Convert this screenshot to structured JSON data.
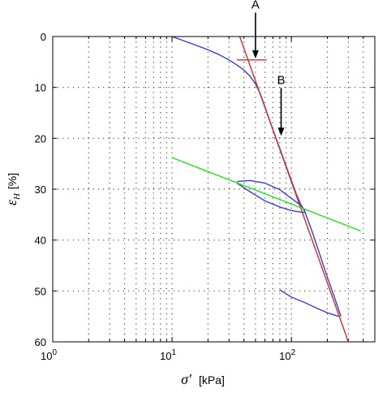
{
  "chart_data": {
    "type": "line",
    "x_scale": "log",
    "y_reversed": true,
    "xlim": [
      1,
      500
    ],
    "ylim": [
      0,
      60
    ],
    "grid": true,
    "grid_style": "dotted",
    "xlabel": {
      "symbol": "σ′",
      "unit": "[kPa]"
    },
    "ylabel": {
      "symbol": "ε",
      "sub": "H",
      "unit": "[%]"
    },
    "x_ticks": [
      {
        "value": 1,
        "base": "10",
        "exp": "0"
      },
      {
        "value": 10,
        "base": "10",
        "exp": "1"
      },
      {
        "value": 100,
        "base": "10",
        "exp": "2"
      }
    ],
    "y_ticks": [
      "0",
      "10",
      "20",
      "30",
      "40",
      "50",
      "60"
    ],
    "colors": {
      "curve": "#3b3bd6",
      "red": "#d42a2a",
      "green": "#22dd22",
      "arrow": "#000000",
      "grid": "#444444"
    },
    "series": [
      {
        "color": "#3b3bd6",
        "x": [
          10,
          15,
          20,
          25,
          30,
          35,
          40,
          45,
          50,
          55,
          60,
          70,
          80,
          90,
          100,
          110,
          120,
          130
        ],
        "y": [
          0,
          1.5,
          2.6,
          3.6,
          4.6,
          5.6,
          6.6,
          7.8,
          9.3,
          11.3,
          13.8,
          18.3,
          22,
          25.4,
          28.3,
          31,
          33,
          34.5
        ]
      },
      {
        "color": "#3b3bd6",
        "x": [
          35,
          45,
          60,
          80,
          100,
          120,
          130
        ],
        "y": [
          28.5,
          28.3,
          28.8,
          30.1,
          31.8,
          33.2,
          34.2
        ]
      },
      {
        "color": "#3b3bd6",
        "x": [
          35,
          45,
          60,
          80,
          100,
          120,
          130
        ],
        "y": [
          28.8,
          30.5,
          32.3,
          33.5,
          34.2,
          34.5,
          34.6
        ]
      },
      {
        "color": "#3b3bd6",
        "x": [
          130,
          150,
          170,
          200,
          230,
          260
        ],
        "y": [
          34.5,
          38.5,
          42.3,
          47.3,
          51.3,
          55
        ]
      },
      {
        "color": "#3b3bd6",
        "x": [
          80,
          100,
          130,
          160,
          200,
          250
        ],
        "y": [
          49.8,
          51.2,
          52.3,
          53.3,
          54.3,
          55
        ]
      },
      {
        "color": "#d42a2a",
        "x": [
          35,
          300
        ],
        "y": [
          -1.5,
          60
        ]
      },
      {
        "color": "#d42a2a",
        "x": [
          35,
          62
        ],
        "y": [
          4.6,
          4.6
        ]
      },
      {
        "color": "#22dd22",
        "x": [
          10,
          380
        ],
        "y": [
          23.8,
          38.2
        ]
      }
    ],
    "annotations": [
      {
        "text": "A",
        "x": 50,
        "y": -5.5,
        "arrow_to": [
          50,
          4.3
        ]
      },
      {
        "text": "B",
        "x": 82,
        "y": 9.3,
        "arrow_to": [
          82,
          19.5
        ]
      }
    ]
  }
}
